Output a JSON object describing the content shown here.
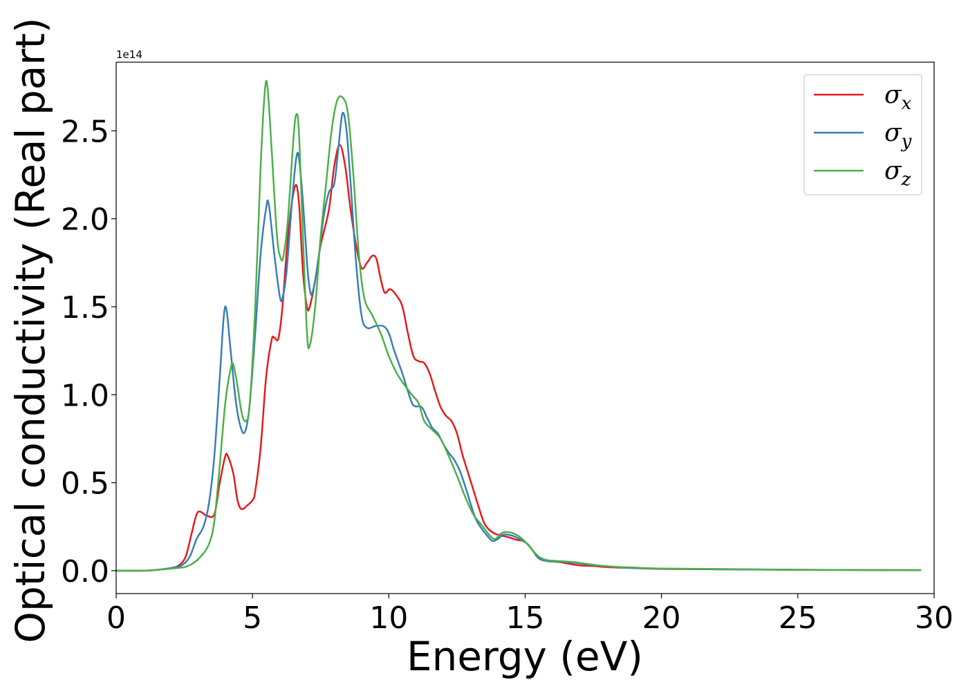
{
  "chart_data": {
    "type": "line",
    "xlabel": "Energy (eV)",
    "ylabel": "Optical conductivity (Real part)",
    "y_offset_text": "1e14",
    "xlim": [
      0,
      30
    ],
    "ylim": [
      -0.13,
      2.89
    ],
    "x_ticks": [
      0,
      5,
      10,
      15,
      20,
      25,
      30
    ],
    "x_tick_labels": [
      "0",
      "5",
      "10",
      "15",
      "20",
      "25",
      "30"
    ],
    "y_ticks": [
      0.0,
      0.5,
      1.0,
      1.5,
      2.0,
      2.5
    ],
    "y_tick_labels": [
      "0.0",
      "0.5",
      "1.0",
      "1.5",
      "2.0",
      "2.5"
    ],
    "grid": false,
    "legend_position": "top-right",
    "series": [
      {
        "name": "σx",
        "legend_base": "σ",
        "legend_sub": "x",
        "color": "#e41a1c",
        "points": [
          [
            0,
            0
          ],
          [
            1,
            0
          ],
          [
            1.5,
            0.005
          ],
          [
            2,
            0.015
          ],
          [
            2.3,
            0.03
          ],
          [
            2.55,
            0.08
          ],
          [
            2.75,
            0.2
          ],
          [
            2.95,
            0.32
          ],
          [
            3.1,
            0.335
          ],
          [
            3.3,
            0.315
          ],
          [
            3.6,
            0.32
          ],
          [
            3.8,
            0.5
          ],
          [
            4.0,
            0.65
          ],
          [
            4.1,
            0.65
          ],
          [
            4.3,
            0.55
          ],
          [
            4.45,
            0.4
          ],
          [
            4.6,
            0.35
          ],
          [
            4.8,
            0.37
          ],
          [
            5.0,
            0.4
          ],
          [
            5.1,
            0.45
          ],
          [
            5.3,
            0.7
          ],
          [
            5.5,
            1.1
          ],
          [
            5.7,
            1.31
          ],
          [
            5.8,
            1.325
          ],
          [
            5.95,
            1.32
          ],
          [
            6.1,
            1.5
          ],
          [
            6.3,
            1.9
          ],
          [
            6.55,
            2.18
          ],
          [
            6.7,
            2.1
          ],
          [
            6.85,
            1.7
          ],
          [
            7.0,
            1.5
          ],
          [
            7.1,
            1.5
          ],
          [
            7.3,
            1.65
          ],
          [
            7.5,
            1.85
          ],
          [
            7.8,
            2.05
          ],
          [
            8.0,
            2.3
          ],
          [
            8.2,
            2.42
          ],
          [
            8.4,
            2.3
          ],
          [
            8.6,
            2.05
          ],
          [
            8.8,
            1.85
          ],
          [
            9.0,
            1.72
          ],
          [
            9.2,
            1.75
          ],
          [
            9.4,
            1.79
          ],
          [
            9.55,
            1.77
          ],
          [
            9.7,
            1.66
          ],
          [
            9.85,
            1.58
          ],
          [
            10.05,
            1.6
          ],
          [
            10.3,
            1.56
          ],
          [
            10.5,
            1.5
          ],
          [
            10.7,
            1.35
          ],
          [
            10.9,
            1.22
          ],
          [
            11.1,
            1.19
          ],
          [
            11.3,
            1.18
          ],
          [
            11.5,
            1.12
          ],
          [
            11.7,
            1.02
          ],
          [
            11.9,
            0.93
          ],
          [
            12.1,
            0.88
          ],
          [
            12.3,
            0.85
          ],
          [
            12.5,
            0.78
          ],
          [
            12.7,
            0.66
          ],
          [
            12.9,
            0.56
          ],
          [
            13.1,
            0.46
          ],
          [
            13.3,
            0.36
          ],
          [
            13.5,
            0.27
          ],
          [
            13.7,
            0.23
          ],
          [
            13.9,
            0.21
          ],
          [
            14.1,
            0.2
          ],
          [
            14.4,
            0.19
          ],
          [
            14.7,
            0.175
          ],
          [
            14.9,
            0.17
          ],
          [
            15.1,
            0.15
          ],
          [
            15.3,
            0.11
          ],
          [
            15.5,
            0.07
          ],
          [
            15.8,
            0.055
          ],
          [
            16.2,
            0.05
          ],
          [
            16.6,
            0.04
          ],
          [
            17.0,
            0.03
          ],
          [
            17.5,
            0.027
          ],
          [
            18.0,
            0.02
          ],
          [
            19.0,
            0.015
          ],
          [
            20.0,
            0.01
          ],
          [
            22.0,
            0.008
          ],
          [
            25.0,
            0.005
          ],
          [
            27.0,
            0.004
          ],
          [
            29.5,
            0.003
          ]
        ]
      },
      {
        "name": "σy",
        "legend_base": "σ",
        "legend_sub": "y",
        "color": "#377eb8",
        "points": [
          [
            0,
            0
          ],
          [
            1,
            0
          ],
          [
            1.5,
            0.005
          ],
          [
            2,
            0.015
          ],
          [
            2.4,
            0.03
          ],
          [
            2.7,
            0.08
          ],
          [
            2.95,
            0.18
          ],
          [
            3.2,
            0.25
          ],
          [
            3.4,
            0.38
          ],
          [
            3.6,
            0.65
          ],
          [
            3.8,
            1.1
          ],
          [
            3.95,
            1.45
          ],
          [
            4.05,
            1.48
          ],
          [
            4.2,
            1.25
          ],
          [
            4.4,
            0.95
          ],
          [
            4.6,
            0.8
          ],
          [
            4.75,
            0.8
          ],
          [
            4.9,
            0.95
          ],
          [
            5.1,
            1.35
          ],
          [
            5.3,
            1.8
          ],
          [
            5.5,
            2.06
          ],
          [
            5.6,
            2.08
          ],
          [
            5.8,
            1.8
          ],
          [
            6.0,
            1.56
          ],
          [
            6.1,
            1.55
          ],
          [
            6.25,
            1.7
          ],
          [
            6.45,
            2.1
          ],
          [
            6.6,
            2.34
          ],
          [
            6.7,
            2.35
          ],
          [
            6.85,
            2.1
          ],
          [
            7.0,
            1.75
          ],
          [
            7.1,
            1.6
          ],
          [
            7.2,
            1.58
          ],
          [
            7.4,
            1.75
          ],
          [
            7.6,
            2.0
          ],
          [
            7.8,
            2.15
          ],
          [
            8.0,
            2.2
          ],
          [
            8.15,
            2.4
          ],
          [
            8.3,
            2.6
          ],
          [
            8.45,
            2.5
          ],
          [
            8.6,
            2.2
          ],
          [
            8.8,
            1.75
          ],
          [
            9.0,
            1.45
          ],
          [
            9.2,
            1.38
          ],
          [
            9.5,
            1.39
          ],
          [
            9.8,
            1.39
          ],
          [
            10.0,
            1.35
          ],
          [
            10.2,
            1.25
          ],
          [
            10.5,
            1.12
          ],
          [
            10.7,
            1.02
          ],
          [
            10.9,
            0.94
          ],
          [
            11.2,
            0.93
          ],
          [
            11.4,
            0.87
          ],
          [
            11.6,
            0.81
          ],
          [
            11.8,
            0.78
          ],
          [
            12.0,
            0.72
          ],
          [
            12.2,
            0.67
          ],
          [
            12.4,
            0.63
          ],
          [
            12.6,
            0.57
          ],
          [
            12.8,
            0.48
          ],
          [
            13.0,
            0.38
          ],
          [
            13.2,
            0.29
          ],
          [
            13.4,
            0.24
          ],
          [
            13.6,
            0.2
          ],
          [
            13.8,
            0.17
          ],
          [
            14.0,
            0.18
          ],
          [
            14.2,
            0.205
          ],
          [
            14.5,
            0.2
          ],
          [
            14.8,
            0.18
          ],
          [
            15.1,
            0.15
          ],
          [
            15.3,
            0.11
          ],
          [
            15.5,
            0.07
          ],
          [
            15.8,
            0.055
          ],
          [
            16.3,
            0.05
          ],
          [
            16.8,
            0.045
          ],
          [
            17.3,
            0.035
          ],
          [
            18.0,
            0.025
          ],
          [
            19.0,
            0.015
          ],
          [
            20.0,
            0.012
          ],
          [
            22.0,
            0.008
          ],
          [
            25.0,
            0.005
          ],
          [
            27.0,
            0.004
          ],
          [
            29.5,
            0.003
          ]
        ]
      },
      {
        "name": "σz",
        "legend_base": "σ",
        "legend_sub": "z",
        "color": "#4daf4a",
        "points": [
          [
            0,
            0
          ],
          [
            1,
            0
          ],
          [
            1.5,
            0.005
          ],
          [
            2,
            0.012
          ],
          [
            2.5,
            0.02
          ],
          [
            2.8,
            0.04
          ],
          [
            3.1,
            0.08
          ],
          [
            3.4,
            0.15
          ],
          [
            3.6,
            0.28
          ],
          [
            3.8,
            0.6
          ],
          [
            4.0,
            0.95
          ],
          [
            4.2,
            1.15
          ],
          [
            4.3,
            1.17
          ],
          [
            4.45,
            1.05
          ],
          [
            4.6,
            0.9
          ],
          [
            4.75,
            0.85
          ],
          [
            4.9,
            0.95
          ],
          [
            5.1,
            1.5
          ],
          [
            5.3,
            2.3
          ],
          [
            5.45,
            2.72
          ],
          [
            5.55,
            2.75
          ],
          [
            5.7,
            2.4
          ],
          [
            5.9,
            1.9
          ],
          [
            6.05,
            1.77
          ],
          [
            6.15,
            1.8
          ],
          [
            6.3,
            2.0
          ],
          [
            6.5,
            2.45
          ],
          [
            6.6,
            2.59
          ],
          [
            6.7,
            2.5
          ],
          [
            6.85,
            1.9
          ],
          [
            7.0,
            1.35
          ],
          [
            7.1,
            1.28
          ],
          [
            7.3,
            1.5
          ],
          [
            7.5,
            1.9
          ],
          [
            7.7,
            2.2
          ],
          [
            7.9,
            2.5
          ],
          [
            8.1,
            2.67
          ],
          [
            8.3,
            2.69
          ],
          [
            8.5,
            2.6
          ],
          [
            8.7,
            2.25
          ],
          [
            8.9,
            1.8
          ],
          [
            9.1,
            1.55
          ],
          [
            9.4,
            1.45
          ],
          [
            9.7,
            1.35
          ],
          [
            10.0,
            1.22
          ],
          [
            10.3,
            1.12
          ],
          [
            10.6,
            1.05
          ],
          [
            10.9,
            0.99
          ],
          [
            11.1,
            0.95
          ],
          [
            11.3,
            0.85
          ],
          [
            11.6,
            0.8
          ],
          [
            11.9,
            0.75
          ],
          [
            12.2,
            0.65
          ],
          [
            12.5,
            0.54
          ],
          [
            12.8,
            0.42
          ],
          [
            13.1,
            0.32
          ],
          [
            13.4,
            0.26
          ],
          [
            13.7,
            0.2
          ],
          [
            13.9,
            0.18
          ],
          [
            14.1,
            0.21
          ],
          [
            14.3,
            0.22
          ],
          [
            14.6,
            0.21
          ],
          [
            14.9,
            0.18
          ],
          [
            15.2,
            0.13
          ],
          [
            15.5,
            0.08
          ],
          [
            15.8,
            0.06
          ],
          [
            16.2,
            0.055
          ],
          [
            16.7,
            0.05
          ],
          [
            17.2,
            0.04
          ],
          [
            18.0,
            0.025
          ],
          [
            19.0,
            0.018
          ],
          [
            20.0,
            0.012
          ],
          [
            22.0,
            0.01
          ],
          [
            25.0,
            0.005
          ],
          [
            27.0,
            0.004
          ],
          [
            29.5,
            0.003
          ]
        ]
      }
    ]
  }
}
